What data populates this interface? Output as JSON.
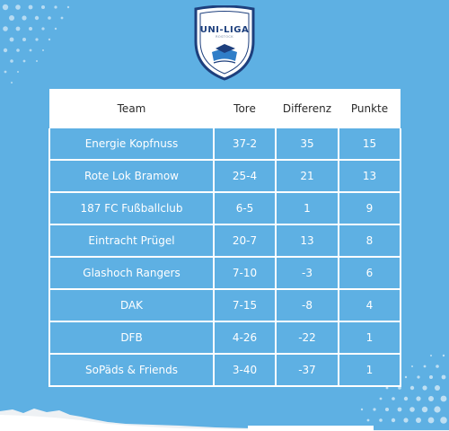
{
  "logo": {
    "title": "UNI-LIGA",
    "subtitle": "ROSTOCK"
  },
  "table": {
    "headers": [
      "Team",
      "Tore",
      "Differenz",
      "Punkte"
    ],
    "rows": [
      {
        "team": "Energie Kopfnuss",
        "tore": "37-2",
        "diff": "35",
        "pts": "15"
      },
      {
        "team": "Rote Lok Bramow",
        "tore": "25-4",
        "diff": "21",
        "pts": "13"
      },
      {
        "team": "187 FC Fußballclub",
        "tore": "6-5",
        "diff": "1",
        "pts": "9"
      },
      {
        "team": "Eintracht Prügel",
        "tore": "20-7",
        "diff": "13",
        "pts": "8"
      },
      {
        "team": "Glashoch Rangers",
        "tore": "7-10",
        "diff": "-3",
        "pts": "6"
      },
      {
        "team": "DAK",
        "tore": "7-15",
        "diff": "-8",
        "pts": "4"
      },
      {
        "team": "DFB",
        "tore": "4-26",
        "diff": "-22",
        "pts": "1"
      },
      {
        "team": "SoPäds & Friends",
        "tore": "3-40",
        "diff": "-37",
        "pts": "1"
      }
    ]
  },
  "colors": {
    "background": "#5eb0e3",
    "grid": "#ffffff",
    "logo_navy": "#1d3f7d"
  }
}
